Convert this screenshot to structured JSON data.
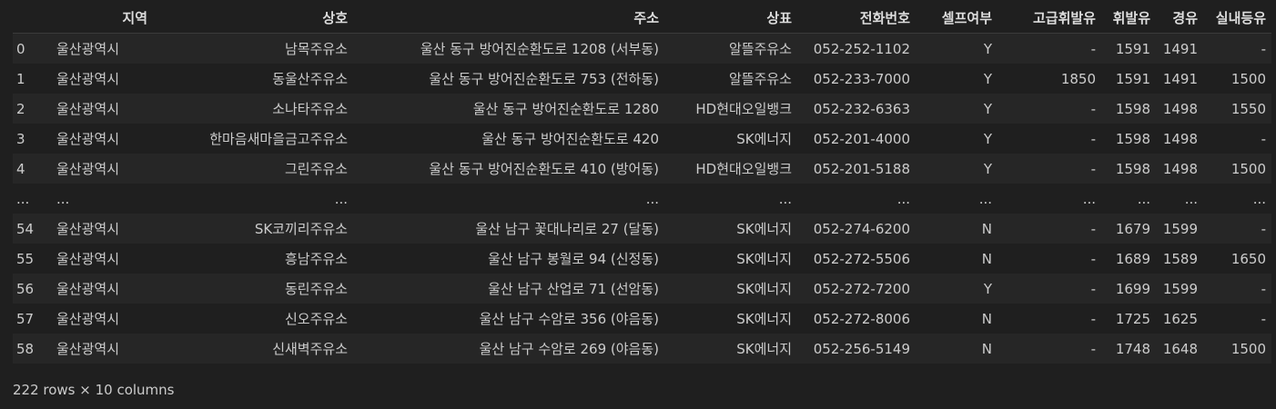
{
  "table": {
    "columns": [
      "",
      "지역",
      "상호",
      "주소",
      "상표",
      "전화번호",
      "셀프여부",
      "고급휘발유",
      "휘발유",
      "경유",
      "실내등유"
    ],
    "rows": [
      [
        "0",
        "울산광역시",
        "남목주유소",
        "울산 동구 방어진순환도로 1208 (서부동)",
        "알뜰주유소",
        "052-252-1102",
        "Y",
        "-",
        "1591",
        "1491",
        "-"
      ],
      [
        "1",
        "울산광역시",
        "동울산주유소",
        "울산 동구 방어진순환도로 753 (전하동)",
        "알뜰주유소",
        "052-233-7000",
        "Y",
        "1850",
        "1591",
        "1491",
        "1500"
      ],
      [
        "2",
        "울산광역시",
        "소나타주유소",
        "울산 동구 방어진순환도로 1280",
        "HD현대오일뱅크",
        "052-232-6363",
        "Y",
        "-",
        "1598",
        "1498",
        "1550"
      ],
      [
        "3",
        "울산광역시",
        "한마음새마을금고주유소",
        "울산 동구 방어진순환도로 420",
        "SK에너지",
        "052-201-4000",
        "Y",
        "-",
        "1598",
        "1498",
        "-"
      ],
      [
        "4",
        "울산광역시",
        "그린주유소",
        "울산 동구 방어진순환도로 410 (방어동)",
        "HD현대오일뱅크",
        "052-201-5188",
        "Y",
        "-",
        "1598",
        "1498",
        "1500"
      ],
      [
        "...",
        "...",
        "...",
        "...",
        "...",
        "...",
        "...",
        "...",
        "...",
        "...",
        "..."
      ],
      [
        "54",
        "울산광역시",
        "SK코끼리주유소",
        "울산 남구 꽃대나리로 27 (달동)",
        "SK에너지",
        "052-274-6200",
        "N",
        "-",
        "1679",
        "1599",
        "-"
      ],
      [
        "55",
        "울산광역시",
        "흥남주유소",
        "울산 남구 봉월로 94 (신정동)",
        "SK에너지",
        "052-272-5506",
        "N",
        "-",
        "1689",
        "1589",
        "1650"
      ],
      [
        "56",
        "울산광역시",
        "동린주유소",
        "울산 남구 산업로 71 (선암동)",
        "SK에너지",
        "052-272-7200",
        "Y",
        "-",
        "1699",
        "1599",
        "-"
      ],
      [
        "57",
        "울산광역시",
        "신오주유소",
        "울산 남구 수암로 356 (야음동)",
        "SK에너지",
        "052-272-8006",
        "N",
        "-",
        "1725",
        "1625",
        "-"
      ],
      [
        "58",
        "울산광역시",
        "신새벽주유소",
        "울산 남구 수암로 269 (야음동)",
        "SK에너지",
        "052-256-5149",
        "N",
        "-",
        "1748",
        "1648",
        "1500"
      ]
    ]
  },
  "footer": {
    "shape_text": "222 rows × 10 columns"
  }
}
